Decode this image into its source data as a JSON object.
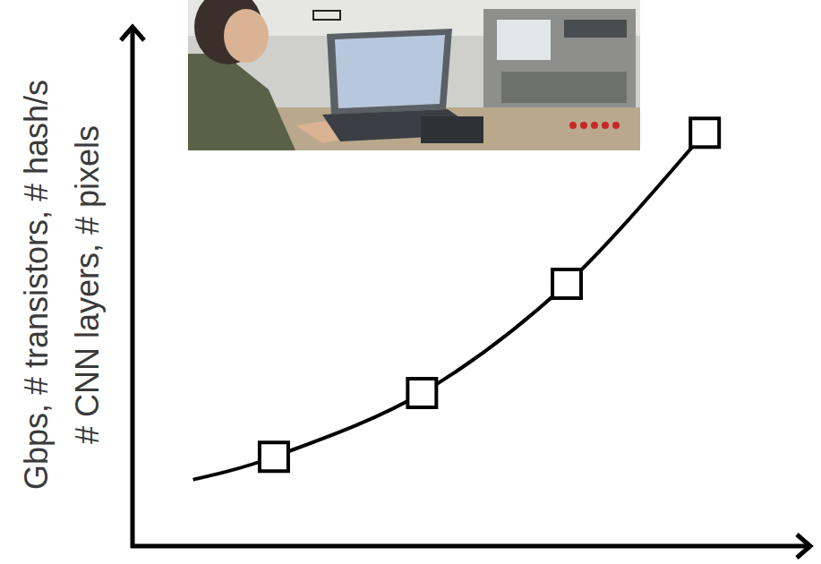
{
  "chart_data": {
    "type": "line",
    "ylabel": [
      "Gbps, # transistors, # hash/s",
      "# CNN layers, # pixels"
    ],
    "xlim": [
      0,
      100
    ],
    "ylim": [
      0,
      100
    ],
    "xticks": [],
    "yticks": [],
    "tick_labels": false,
    "grid": false,
    "series": [
      {
        "type": "line",
        "color": "#000000",
        "marker": "none",
        "line_style": "solid",
        "x": [
          9,
          21,
          43,
          64.5,
          85
        ],
        "values": [
          13,
          17.5,
          30,
          51.4,
          81
        ]
      },
      {
        "type": "scatter",
        "color": "#000000",
        "marker": "square",
        "x": [
          21,
          43,
          64.5,
          85
        ],
        "values": [
          17.5,
          30,
          51.4,
          81
        ]
      }
    ]
  }
}
